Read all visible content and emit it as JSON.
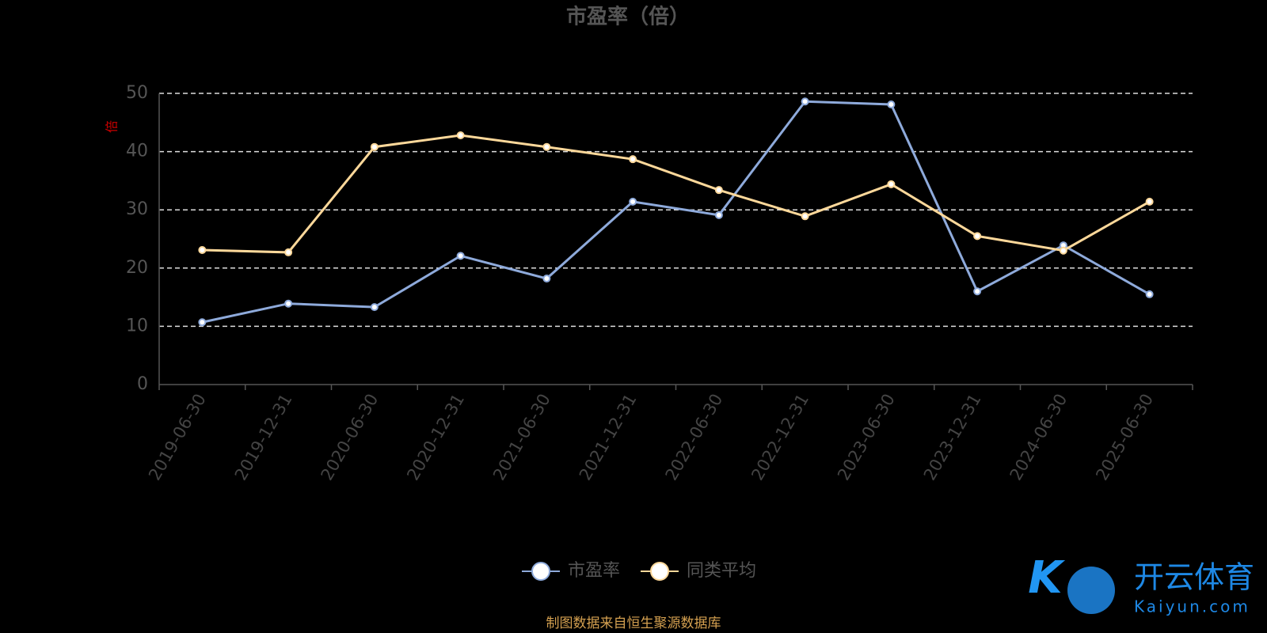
{
  "chart_data": {
    "type": "line",
    "title": "市盈率（倍）",
    "y_label": "倍",
    "categories": [
      "2019-06-30",
      "2019-12-31",
      "2020-06-30",
      "2020-12-31",
      "2021-06-30",
      "2021-12-31",
      "2022-06-30",
      "2022-12-31",
      "2023-06-30",
      "2023-12-31",
      "2024-06-30",
      "2025-06-30"
    ],
    "series": [
      {
        "name": "市盈率",
        "color": "#8eaadb",
        "values": [
          10.7,
          13.9,
          13.3,
          22.1,
          18.2,
          31.4,
          29.1,
          48.6,
          48.1,
          16.0,
          23.9,
          15.5
        ]
      },
      {
        "name": "同类平均",
        "color": "#fdd89a",
        "values": [
          23.1,
          22.7,
          40.8,
          42.8,
          40.8,
          38.7,
          33.4,
          28.9,
          34.4,
          25.5,
          23.0,
          31.4
        ]
      }
    ],
    "ylim": [
      0,
      50
    ],
    "yticks": [
      0,
      10,
      20,
      30,
      40,
      50
    ],
    "grid": true,
    "legend": "bottom",
    "source": "制图数据来自恒生聚源数据库"
  },
  "watermark": {
    "brand": "开云体育",
    "site": "Kaiyun.com"
  }
}
